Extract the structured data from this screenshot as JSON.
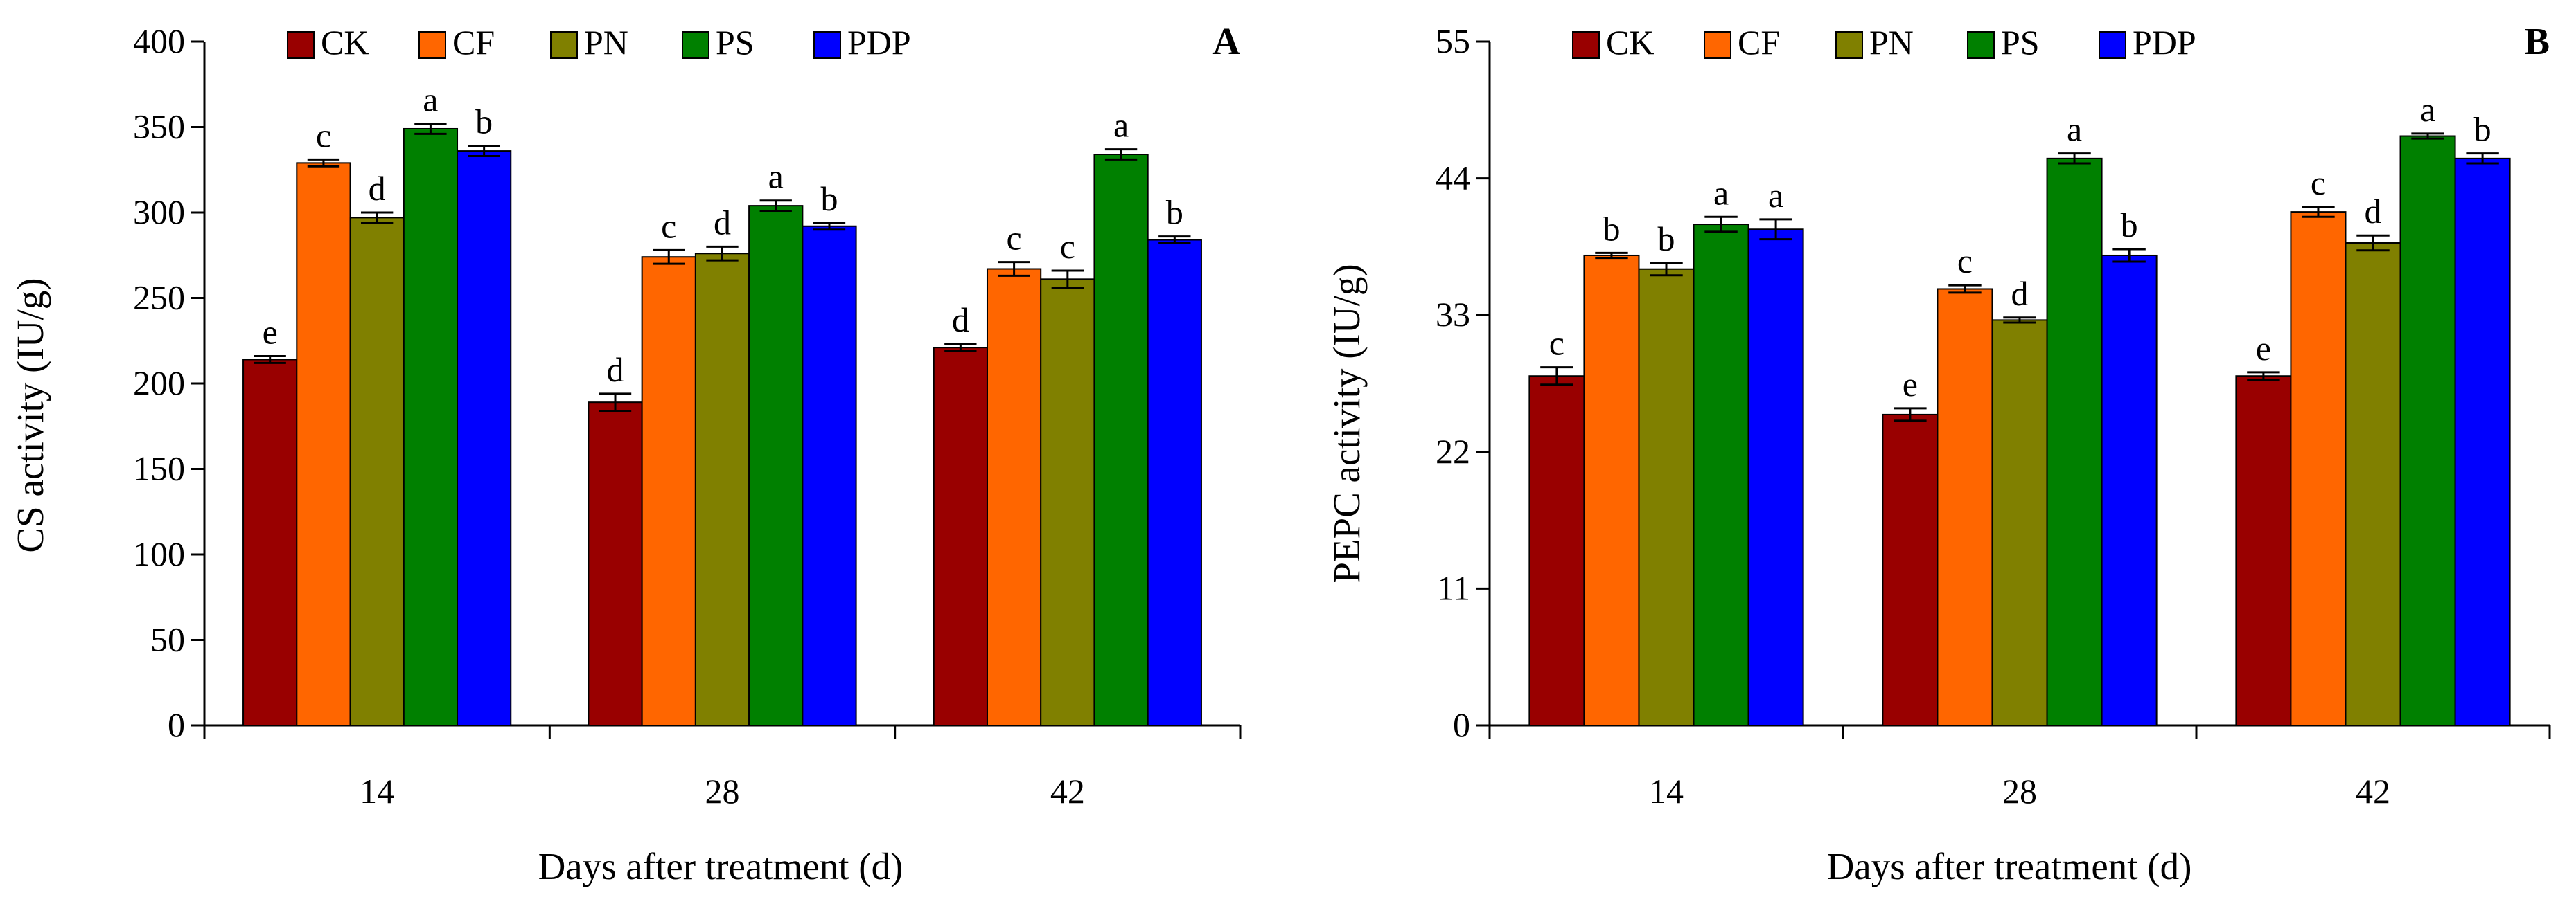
{
  "chart_data": [
    {
      "type": "bar",
      "panel_label": "A",
      "title": "",
      "xlabel": "Days after treatment (d)",
      "ylabel": "CS activity (IU/g)",
      "categories": [
        "14",
        "28",
        "42"
      ],
      "ylim": [
        0,
        400
      ],
      "yticks": [
        0,
        50,
        100,
        150,
        200,
        250,
        300,
        350,
        400
      ],
      "ytick_labels": [
        "0",
        "50",
        "100",
        "150",
        "200",
        "250",
        "300",
        "350",
        "400"
      ],
      "legend_position": "top-center",
      "series": [
        {
          "name": "CK",
          "color": "#990000",
          "values": [
            214,
            189,
            221
          ],
          "errors": [
            2,
            5,
            2
          ],
          "letters": [
            "e",
            "d",
            "d"
          ]
        },
        {
          "name": "CF",
          "color": "#FF6600",
          "values": [
            329,
            274,
            267
          ],
          "errors": [
            2,
            4,
            4
          ],
          "letters": [
            "c",
            "c",
            "c"
          ]
        },
        {
          "name": "PN",
          "color": "#808000",
          "values": [
            297,
            276,
            261
          ],
          "errors": [
            3,
            4,
            5
          ],
          "letters": [
            "d",
            "d",
            "c"
          ]
        },
        {
          "name": "PS",
          "color": "#008000",
          "values": [
            349,
            304,
            334
          ],
          "errors": [
            3,
            3,
            3
          ],
          "letters": [
            "a",
            "a",
            "a"
          ]
        },
        {
          "name": "PDP",
          "color": "#0000FF",
          "values": [
            336,
            292,
            284
          ],
          "errors": [
            3,
            2,
            2
          ],
          "letters": [
            "b",
            "b",
            "b"
          ]
        }
      ]
    },
    {
      "type": "bar",
      "panel_label": "B",
      "title": "",
      "xlabel": "Days after treatment (d)",
      "ylabel": "PEPC activity (IU/g)",
      "categories": [
        "14",
        "28",
        "42"
      ],
      "ylim": [
        0,
        55
      ],
      "yticks": [
        0,
        11,
        22,
        33,
        44,
        55
      ],
      "ytick_labels": [
        "0",
        "11",
        "22",
        "33",
        "44",
        "55"
      ],
      "legend_position": "top-center",
      "series": [
        {
          "name": "CK",
          "color": "#990000",
          "values": [
            28.1,
            25.0,
            28.1
          ],
          "errors": [
            0.7,
            0.5,
            0.3
          ],
          "letters": [
            "c",
            "e",
            "e"
          ]
        },
        {
          "name": "CF",
          "color": "#FF6600",
          "values": [
            37.8,
            35.1,
            41.3
          ],
          "errors": [
            0.2,
            0.3,
            0.4
          ],
          "letters": [
            "b",
            "c",
            "c"
          ]
        },
        {
          "name": "PN",
          "color": "#808000",
          "values": [
            36.7,
            32.6,
            38.8
          ],
          "errors": [
            0.5,
            0.2,
            0.6
          ],
          "letters": [
            "b",
            "d",
            "d"
          ]
        },
        {
          "name": "PS",
          "color": "#008000",
          "values": [
            40.3,
            45.6,
            47.4
          ],
          "errors": [
            0.6,
            0.4,
            0.2
          ],
          "letters": [
            "a",
            "a",
            "a"
          ]
        },
        {
          "name": "PDP",
          "color": "#0000FF",
          "values": [
            39.9,
            37.8,
            45.6
          ],
          "errors": [
            0.8,
            0.5,
            0.4
          ],
          "letters": [
            "a",
            "b",
            "b"
          ]
        }
      ]
    }
  ]
}
